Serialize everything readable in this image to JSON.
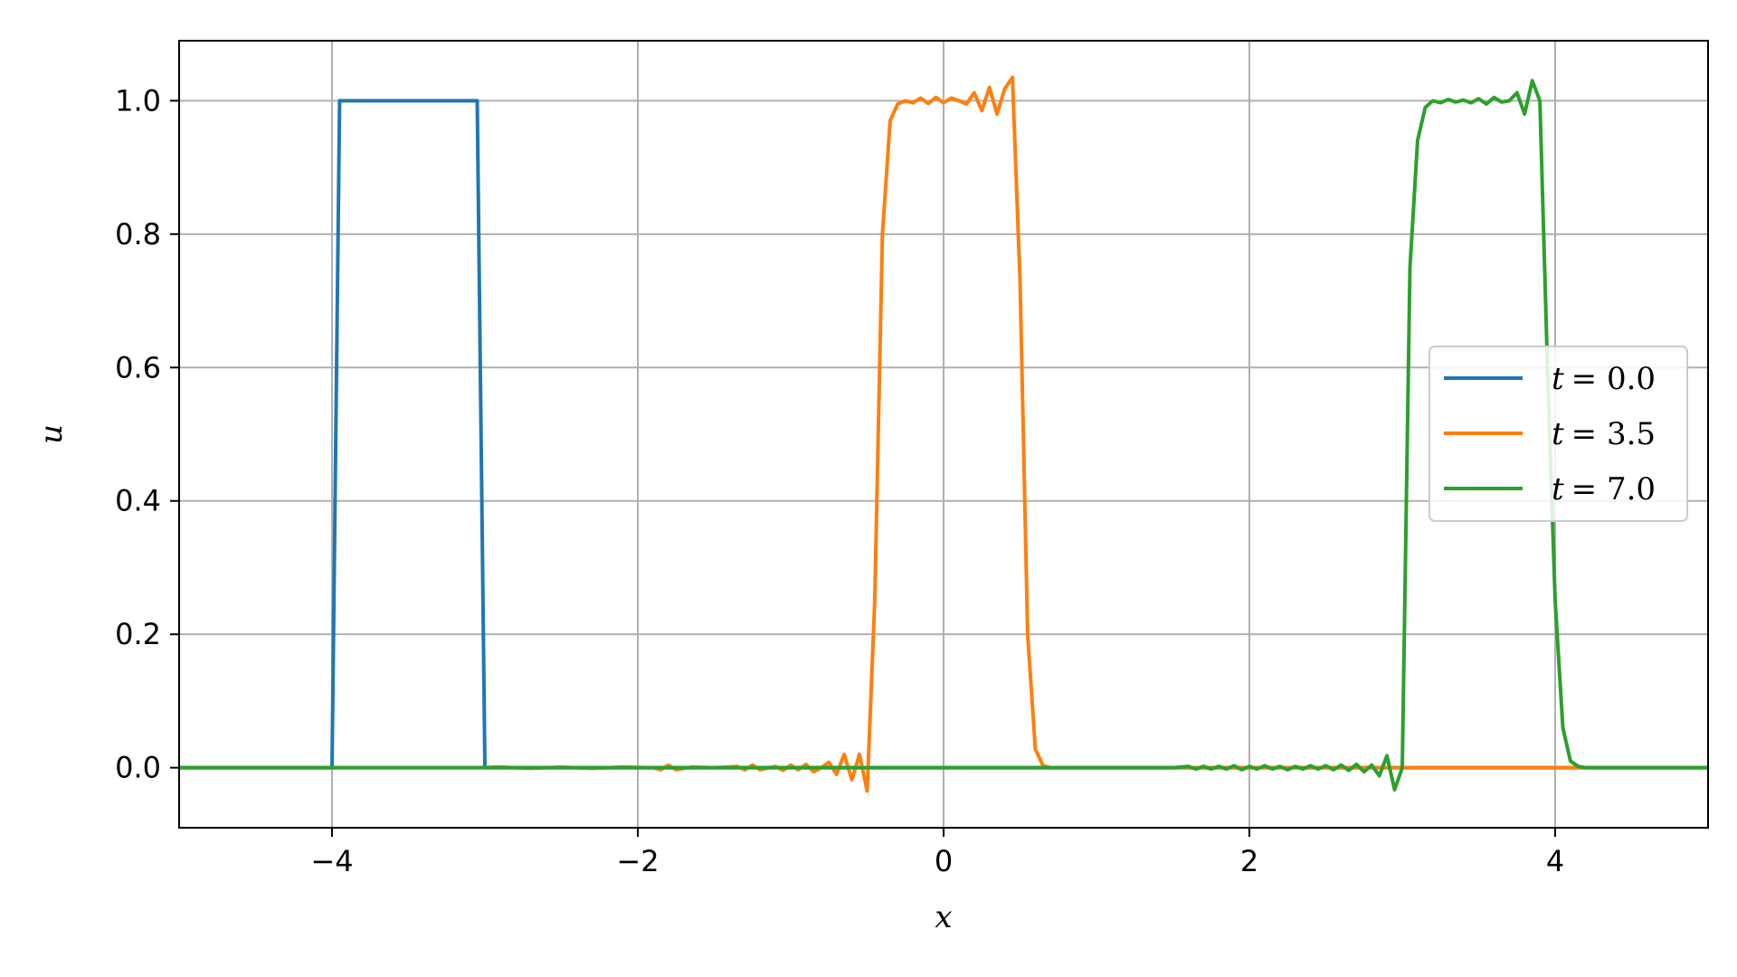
{
  "chart_data": {
    "type": "line",
    "xlabel": "x",
    "ylabel": "u",
    "xlim": [
      -5,
      5
    ],
    "ylim": [
      -0.09,
      1.09
    ],
    "grid": true,
    "legend_placement": "center-right",
    "xticks": [
      {
        "value": -4,
        "label": "−4"
      },
      {
        "value": -2,
        "label": "−2"
      },
      {
        "value": 0,
        "label": "0"
      },
      {
        "value": 2,
        "label": "2"
      },
      {
        "value": 4,
        "label": "4"
      }
    ],
    "yticks": [
      {
        "value": 0.0,
        "label": "0.0"
      },
      {
        "value": 0.2,
        "label": "0.2"
      },
      {
        "value": 0.4,
        "label": "0.4"
      },
      {
        "value": 0.6,
        "label": "0.6"
      },
      {
        "value": 0.8,
        "label": "0.8"
      },
      {
        "value": 1.0,
        "label": "1.0"
      }
    ],
    "series": [
      {
        "name": "t = 0.0",
        "legend_var": "t",
        "legend_value": "= 0.0",
        "color": "#1f77b4",
        "points": [
          [
            -5.0,
            0
          ],
          [
            -4.05,
            0
          ],
          [
            -4.0,
            0
          ],
          [
            -3.95,
            1.0
          ],
          [
            -3.05,
            1.0
          ],
          [
            -3.0,
            0
          ],
          [
            -2.95,
            0
          ],
          [
            5.0,
            0
          ]
        ]
      },
      {
        "name": "t = 3.5",
        "legend_var": "t",
        "legend_value": "= 3.5",
        "color": "#ff7f0e",
        "points": [
          [
            -5.0,
            0
          ],
          [
            -3.05,
            0
          ],
          [
            -2.9,
            0.001
          ],
          [
            -2.7,
            -0.001
          ],
          [
            -2.5,
            0.001
          ],
          [
            -2.3,
            -0.001
          ],
          [
            -2.1,
            0.001
          ],
          [
            -1.9,
            0.0
          ],
          [
            -1.85,
            -0.003
          ],
          [
            -1.8,
            0.004
          ],
          [
            -1.75,
            -0.003
          ],
          [
            -1.65,
            0.001
          ],
          [
            -1.5,
            0.0
          ],
          [
            -1.35,
            0.002
          ],
          [
            -1.3,
            -0.003
          ],
          [
            -1.25,
            0.004
          ],
          [
            -1.2,
            -0.003
          ],
          [
            -1.1,
            0.002
          ],
          [
            -1.05,
            -0.004
          ],
          [
            -1.0,
            0.004
          ],
          [
            -0.95,
            -0.003
          ],
          [
            -0.9,
            0.005
          ],
          [
            -0.85,
            -0.006
          ],
          [
            -0.8,
            0.0
          ],
          [
            -0.75,
            0.008
          ],
          [
            -0.7,
            -0.01
          ],
          [
            -0.65,
            0.02
          ],
          [
            -0.6,
            -0.018
          ],
          [
            -0.55,
            0.02
          ],
          [
            -0.5,
            -0.035
          ],
          [
            -0.45,
            0.25
          ],
          [
            -0.4,
            0.8
          ],
          [
            -0.35,
            0.97
          ],
          [
            -0.3,
            0.995
          ],
          [
            -0.25,
            1.0
          ],
          [
            -0.2,
            0.997
          ],
          [
            -0.15,
            1.004
          ],
          [
            -0.1,
            0.996
          ],
          [
            -0.05,
            1.005
          ],
          [
            0.0,
            0.997
          ],
          [
            0.05,
            1.004
          ],
          [
            0.1,
            1.0
          ],
          [
            0.15,
            0.995
          ],
          [
            0.2,
            1.012
          ],
          [
            0.25,
            0.985
          ],
          [
            0.3,
            1.02
          ],
          [
            0.35,
            0.98
          ],
          [
            0.4,
            1.018
          ],
          [
            0.45,
            1.035
          ],
          [
            0.5,
            0.73
          ],
          [
            0.55,
            0.2
          ],
          [
            0.6,
            0.028
          ],
          [
            0.65,
            0.003
          ],
          [
            0.7,
            0.0
          ],
          [
            5.0,
            0.0
          ]
        ]
      },
      {
        "name": "t = 7.0",
        "legend_var": "t",
        "legend_value": "= 7.0",
        "color": "#2ca02c",
        "points": [
          [
            -5.0,
            0
          ],
          [
            0.7,
            0
          ],
          [
            1.5,
            0.0
          ],
          [
            1.6,
            0.002
          ],
          [
            1.65,
            -0.002
          ],
          [
            1.7,
            0.002
          ],
          [
            1.75,
            -0.002
          ],
          [
            1.8,
            0.002
          ],
          [
            1.85,
            -0.002
          ],
          [
            1.9,
            0.003
          ],
          [
            1.95,
            -0.003
          ],
          [
            2.0,
            0.002
          ],
          [
            2.05,
            -0.002
          ],
          [
            2.1,
            0.003
          ],
          [
            2.15,
            -0.002
          ],
          [
            2.2,
            0.002
          ],
          [
            2.25,
            -0.003
          ],
          [
            2.3,
            0.002
          ],
          [
            2.35,
            -0.002
          ],
          [
            2.4,
            0.003
          ],
          [
            2.45,
            -0.002
          ],
          [
            2.5,
            0.003
          ],
          [
            2.55,
            -0.003
          ],
          [
            2.6,
            0.004
          ],
          [
            2.65,
            -0.004
          ],
          [
            2.7,
            0.005
          ],
          [
            2.75,
            -0.006
          ],
          [
            2.8,
            0.004
          ],
          [
            2.85,
            -0.012
          ],
          [
            2.9,
            0.018
          ],
          [
            2.95,
            -0.033
          ],
          [
            3.0,
            0.0
          ],
          [
            3.05,
            0.75
          ],
          [
            3.1,
            0.94
          ],
          [
            3.15,
            0.99
          ],
          [
            3.2,
            1.0
          ],
          [
            3.25,
            0.997
          ],
          [
            3.3,
            1.002
          ],
          [
            3.35,
            0.998
          ],
          [
            3.4,
            1.001
          ],
          [
            3.45,
            0.997
          ],
          [
            3.5,
            1.003
          ],
          [
            3.55,
            0.995
          ],
          [
            3.6,
            1.005
          ],
          [
            3.65,
            0.998
          ],
          [
            3.7,
            1.0
          ],
          [
            3.75,
            1.012
          ],
          [
            3.8,
            0.98
          ],
          [
            3.85,
            1.03
          ],
          [
            3.9,
            1.0
          ],
          [
            3.95,
            0.6
          ],
          [
            4.0,
            0.25
          ],
          [
            4.05,
            0.06
          ],
          [
            4.1,
            0.01
          ],
          [
            4.15,
            0.002
          ],
          [
            4.2,
            0.0
          ],
          [
            5.0,
            0.0
          ]
        ]
      }
    ]
  }
}
